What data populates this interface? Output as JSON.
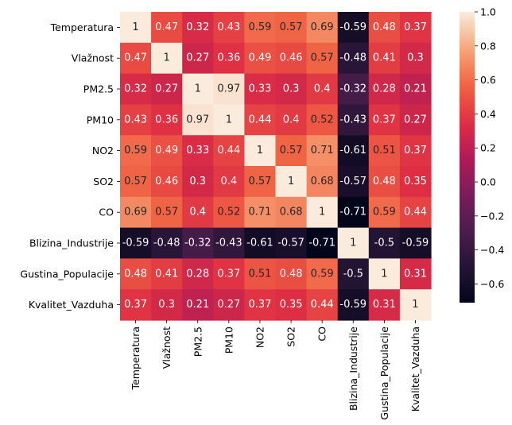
{
  "chart_data": {
    "type": "heatmap",
    "title": "",
    "xlabel": "",
    "ylabel": "",
    "labels": [
      "Temperatura",
      "Vlažnost",
      "PM2.5",
      "PM10",
      "NO2",
      "SO2",
      "CO",
      "Blizina_Industrije",
      "Gustina_Populacije",
      "Kvalitet_Vazduha"
    ],
    "matrix": [
      [
        1,
        0.47,
        0.32,
        0.43,
        0.59,
        0.57,
        0.69,
        -0.59,
        0.48,
        0.37
      ],
      [
        0.47,
        1,
        0.27,
        0.36,
        0.49,
        0.46,
        0.57,
        -0.48,
        0.41,
        0.3
      ],
      [
        0.32,
        0.27,
        1,
        0.97,
        0.33,
        0.3,
        0.4,
        -0.32,
        0.28,
        0.21
      ],
      [
        0.43,
        0.36,
        0.97,
        1,
        0.44,
        0.4,
        0.52,
        -0.43,
        0.37,
        0.27
      ],
      [
        0.59,
        0.49,
        0.33,
        0.44,
        1,
        0.57,
        0.71,
        -0.61,
        0.51,
        0.37
      ],
      [
        0.57,
        0.46,
        0.3,
        0.4,
        0.57,
        1,
        0.68,
        -0.57,
        0.48,
        0.35
      ],
      [
        0.69,
        0.57,
        0.4,
        0.52,
        0.71,
        0.68,
        1,
        -0.71,
        0.59,
        0.44
      ],
      [
        -0.59,
        -0.48,
        -0.32,
        -0.43,
        -0.61,
        -0.57,
        -0.71,
        1,
        -0.5,
        -0.59
      ],
      [
        0.48,
        0.41,
        0.28,
        0.37,
        0.51,
        0.48,
        0.59,
        -0.5,
        1,
        0.31
      ],
      [
        0.37,
        0.3,
        0.21,
        0.27,
        0.37,
        0.35,
        0.44,
        -0.59,
        0.31,
        1
      ]
    ],
    "colorbar": {
      "min": -0.71,
      "max": 1.0,
      "ticks": [
        1.0,
        0.8,
        0.6,
        0.4,
        0.2,
        0.0,
        -0.2,
        -0.4,
        -0.6
      ],
      "tick_labels": [
        "1.0",
        "0.8",
        "0.6",
        "0.4",
        "0.2",
        "0.0",
        "−0.2",
        "−0.4",
        "−0.6"
      ]
    },
    "colormap": "rocket",
    "grid": false
  }
}
